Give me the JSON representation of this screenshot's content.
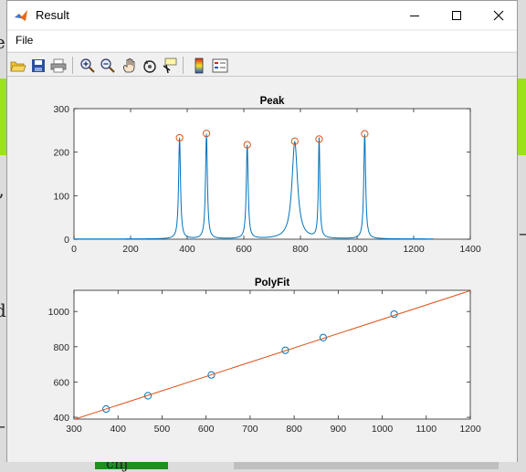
{
  "window": {
    "title": "Result",
    "menu": [
      "File"
    ],
    "toolbar": [
      "open-icon",
      "save-icon",
      "print-icon",
      "zoom-in-icon",
      "zoom-out-icon",
      "pan-icon",
      "rotate-3d-icon",
      "data-cursor-icon",
      "colorbar-icon",
      "legend-icon"
    ]
  },
  "background": {
    "glyphs": [
      "e",
      "d",
      "’",
      "–",
      "–",
      "chj"
    ]
  },
  "chart_data": [
    {
      "type": "line",
      "title": "Peak",
      "xlim": [
        0,
        1400
      ],
      "ylim": [
        0,
        300
      ],
      "xticks": [
        0,
        200,
        400,
        600,
        800,
        1000,
        1200,
        1400
      ],
      "yticks": [
        0,
        100,
        200,
        300
      ],
      "grid": false,
      "series": [
        {
          "kind": "spectrum",
          "color": "#0072BD",
          "peaks": [
            {
              "x": 373,
              "height": 232,
              "width": 5
            },
            {
              "x": 468,
              "height": 241,
              "width": 5
            },
            {
              "x": 612,
              "height": 215,
              "width": 5
            },
            {
              "x": 780,
              "height": 223,
              "width": 15
            },
            {
              "x": 866,
              "height": 229,
              "width": 4
            },
            {
              "x": 1027,
              "height": 240,
              "width": 5
            }
          ],
          "x_range": [
            0,
            1270
          ]
        },
        {
          "kind": "markers",
          "marker": "circle",
          "color": "#D95319",
          "x": [
            373,
            468,
            612,
            780,
            866,
            1027
          ],
          "y": [
            233,
            243,
            217,
            225,
            230,
            242
          ]
        }
      ]
    },
    {
      "type": "scatter",
      "title": "PolyFit",
      "xlim": [
        300,
        1200
      ],
      "ylim": [
        390,
        1120
      ],
      "xticks": [
        300,
        400,
        500,
        600,
        700,
        800,
        900,
        1000,
        1100,
        1200
      ],
      "yticks": [
        400,
        600,
        800,
        1000
      ],
      "grid": false,
      "series": [
        {
          "kind": "markers",
          "marker": "circle",
          "color": "#0072BD",
          "x": [
            373,
            468,
            612,
            780,
            866,
            1027
          ],
          "y": [
            447,
            522,
            640,
            780,
            852,
            985
          ]
        },
        {
          "kind": "fit-line",
          "color": "#D95319",
          "x": [
            300,
            1200
          ],
          "y": [
            388,
            1118
          ]
        }
      ]
    }
  ]
}
